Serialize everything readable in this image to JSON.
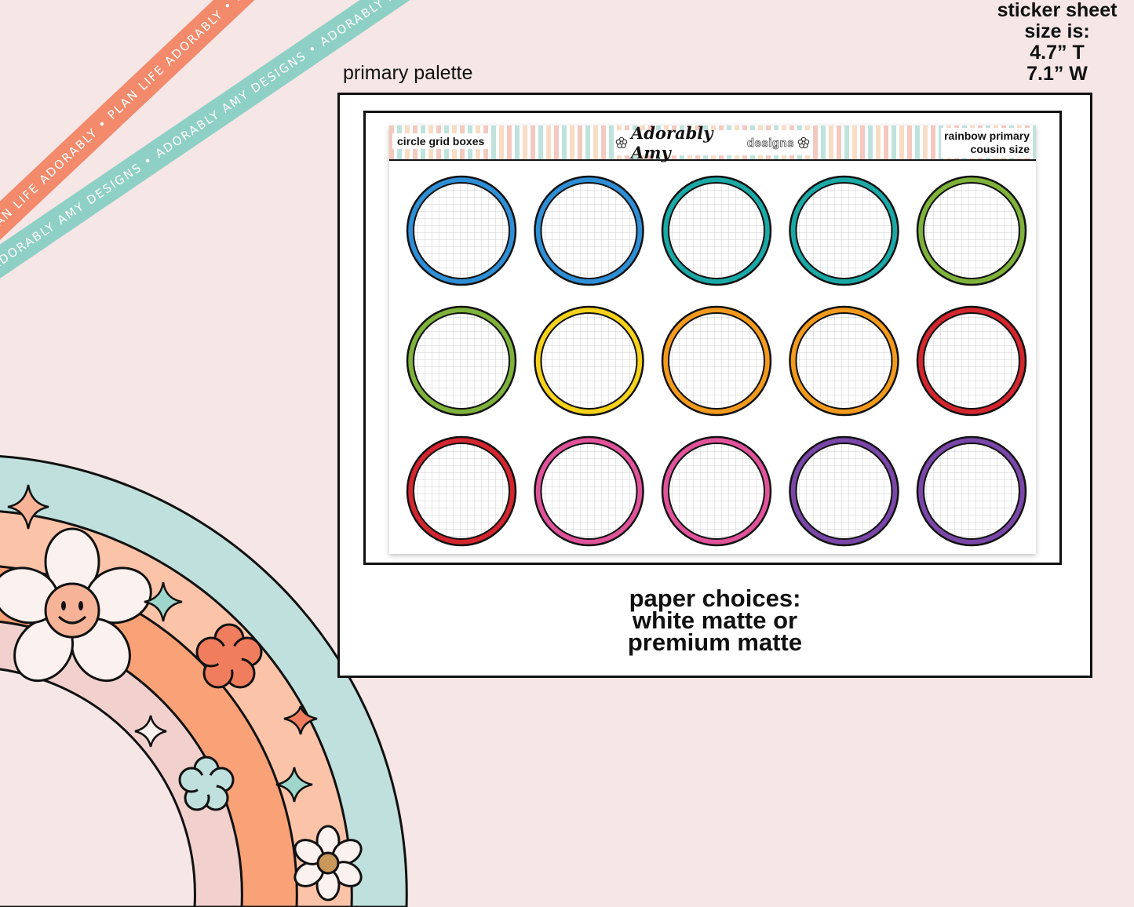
{
  "ribbons": {
    "orange_text": "PLAN LIFE ADORABLY • PLAN LIFE ADORABLY • PLAN LIFE ADORABLY •",
    "teal_text": "ADORABLY AMY DESIGNS • ADORABLY AMY DESIGNS • ADORABLY AMY DESIGNS •",
    "orange_color": "#f28a6b",
    "teal_color": "#8fd0c6"
  },
  "size_info": {
    "line1": "sticker sheet",
    "line2": "size is:",
    "line3": "4.7” T",
    "line4": "7.1” W"
  },
  "palette_label": "primary palette",
  "sheet": {
    "header_left": "circle grid boxes",
    "logo_script": "Adorably Amy",
    "logo_sub": "designs",
    "header_right_line1": "rainbow primary",
    "header_right_line2": "cousin size",
    "circle_colors": [
      "#2f8fd6",
      "#2f8fd6",
      "#1aa9a6",
      "#1aa9a6",
      "#7fb23a",
      "#7fb23a",
      "#f7d21a",
      "#f39a1d",
      "#f39a1d",
      "#d3262e",
      "#d3262e",
      "#e0539a",
      "#e0539a",
      "#7a47a8",
      "#7a47a8"
    ]
  },
  "paper_choices": {
    "line1": "paper choices:",
    "line2": "white matte or",
    "line3": "premium matte"
  },
  "rainbow_colors": {
    "outer": "#bfe0dc",
    "second": "#fbc3a8",
    "third": "#f9a177",
    "inner": "#f1d0ce"
  }
}
